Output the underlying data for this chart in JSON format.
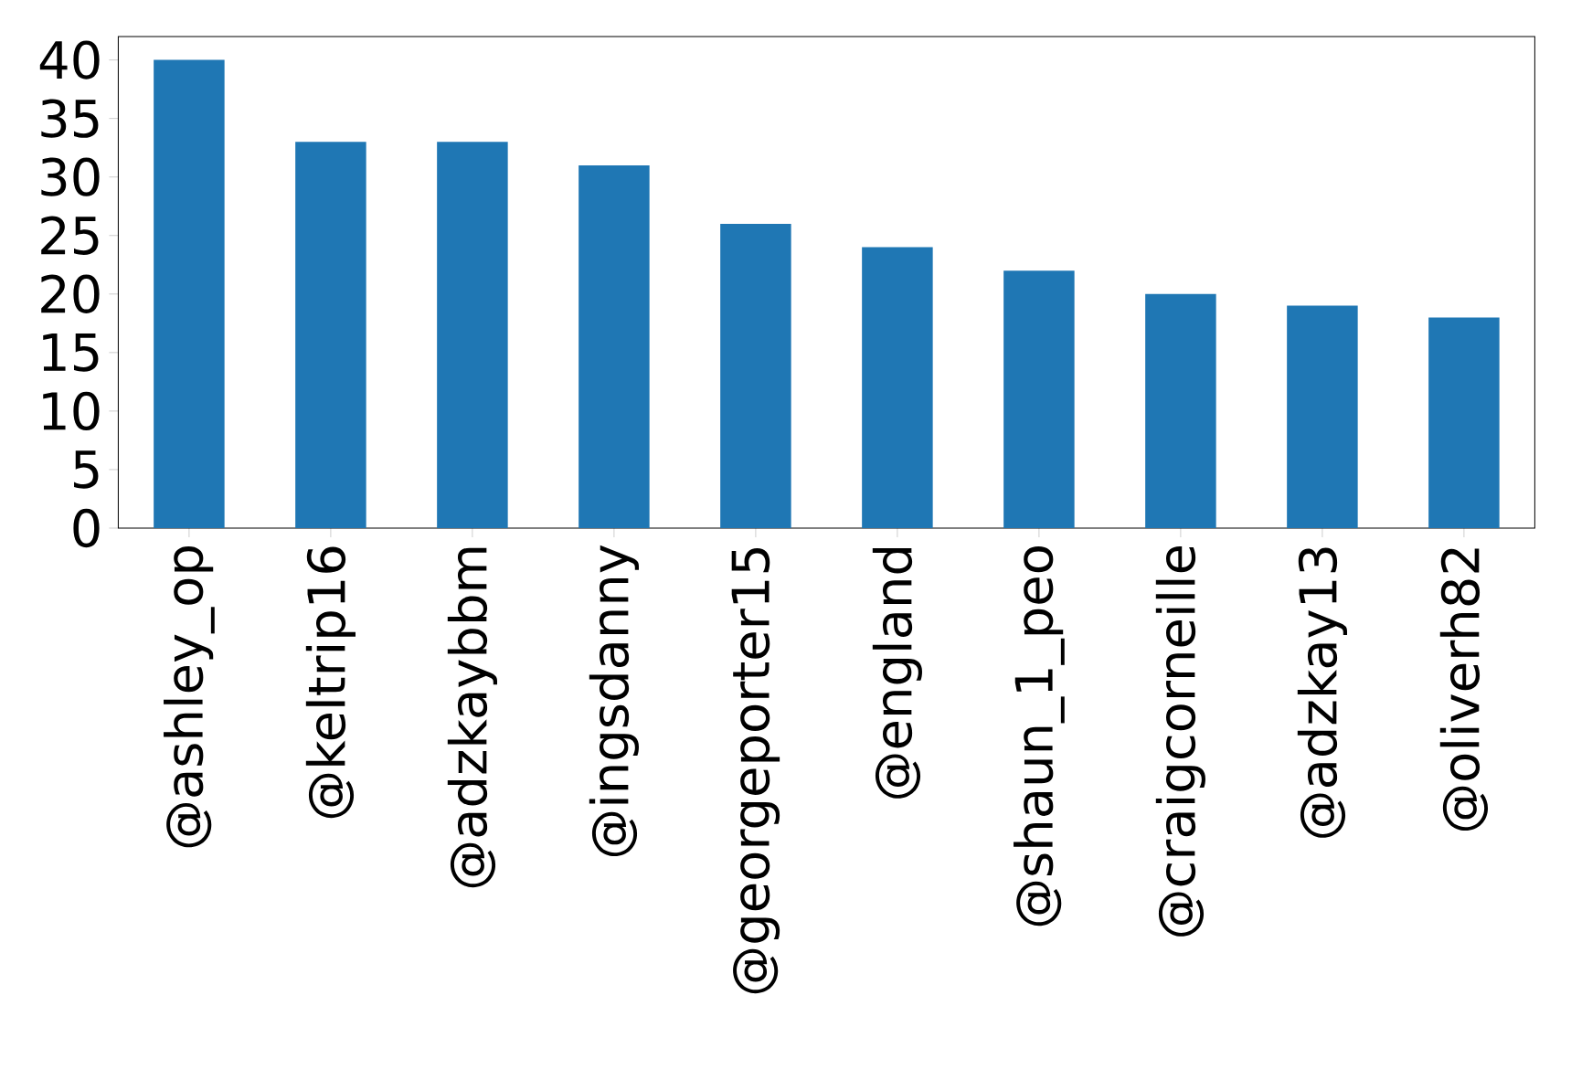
{
  "chart_data": {
    "type": "bar",
    "categories": [
      "@ashley_op",
      "@keltrip16",
      "@adzkaybbm",
      "@ingsdanny",
      "@georgeporter15",
      "@england",
      "@shaun_1_peo",
      "@craigcorneille",
      "@adzkay13",
      "@oliverh82"
    ],
    "values": [
      40,
      33,
      33,
      31,
      26,
      24,
      22,
      20,
      19,
      18
    ],
    "color": "#1f77b4",
    "ylim": [
      0,
      42
    ],
    "yticks": [
      0,
      5,
      10,
      15,
      20,
      25,
      30,
      35,
      40
    ],
    "grid": false
  }
}
